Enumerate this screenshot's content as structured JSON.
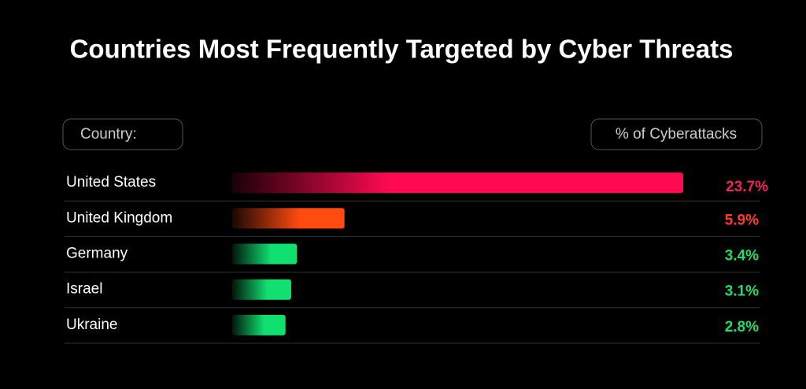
{
  "chart_data": {
    "type": "bar",
    "orientation": "horizontal",
    "title": "Countries Most Frequently Targeted by Cyber Threats",
    "category_header": "Country:",
    "value_header": "% of Cyberattacks",
    "categories": [
      "United States",
      "United Kingdom",
      "Germany",
      "Israel",
      "Ukraine"
    ],
    "values": [
      23.7,
      5.9,
      3.4,
      3.1,
      2.8
    ],
    "value_labels": [
      "23.7%",
      "5.9%",
      "3.4%",
      "3.1%",
      "2.8%"
    ],
    "colors": [
      "#ff0a50",
      "#ff4a10",
      "#10e070",
      "#10e070",
      "#10e070"
    ],
    "label_colors": [
      "#f0245a",
      "#ff3a30",
      "#20dd66",
      "#20dd66",
      "#20dd66"
    ]
  }
}
